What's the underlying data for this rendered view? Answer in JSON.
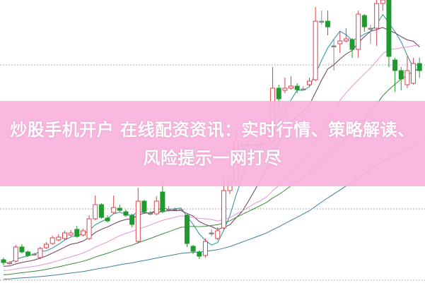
{
  "banner": {
    "title": "炒股手机开户 在线配资资讯：实时行情、策略解读、风险提示一网打尽"
  },
  "colors": {
    "up": "#d9434e",
    "down": "#1f9a2e",
    "flat": "#888888",
    "grid": "#999999",
    "banner": "#f9b2dc",
    "ma": [
      "#2a8f9e",
      "#6b3a5e",
      "#e591d9",
      "#3d8a3a",
      "#3f7f9c"
    ]
  },
  "chart_data": {
    "type": "candlestick",
    "title": "",
    "xlabel": "",
    "ylabel": "",
    "grid": true,
    "legend": "none",
    "moving_averages": 5,
    "ohlc_order": [
      "open",
      "close",
      "high",
      "low"
    ],
    "candles": [
      [
        32,
        28,
        35,
        24
      ],
      [
        27,
        28,
        30,
        25
      ],
      [
        30,
        50,
        53,
        28
      ],
      [
        50,
        43,
        54,
        41
      ],
      [
        43,
        38,
        45,
        36
      ],
      [
        40,
        40,
        42,
        38
      ],
      [
        35,
        48,
        50,
        33
      ],
      [
        49,
        54,
        57,
        47
      ],
      [
        55,
        63,
        66,
        53
      ],
      [
        60,
        64,
        68,
        58
      ],
      [
        62,
        70,
        73,
        60
      ],
      [
        67,
        70,
        74,
        65
      ],
      [
        75,
        65,
        80,
        63
      ],
      [
        67,
        73,
        76,
        65
      ],
      [
        62,
        90,
        95,
        60
      ],
      [
        90,
        110,
        123,
        88
      ],
      [
        110,
        92,
        112,
        90
      ],
      [
        91,
        87,
        95,
        85
      ],
      [
        99,
        106,
        123,
        97
      ],
      [
        105,
        102,
        110,
        100
      ],
      [
        100,
        95,
        103,
        93
      ],
      [
        95,
        82,
        97,
        78
      ],
      [
        58,
        115,
        134,
        55
      ],
      [
        115,
        100,
        117,
        98
      ],
      [
        98,
        98,
        101,
        95
      ],
      [
        97,
        115,
        122,
        95
      ],
      [
        128,
        100,
        142,
        98
      ],
      [
        104,
        104,
        108,
        100
      ],
      [
        104,
        104,
        106,
        102
      ],
      [
        103,
        103,
        106,
        101
      ],
      [
        95,
        55,
        97,
        50
      ],
      [
        51,
        44,
        53,
        40
      ],
      [
        43,
        37,
        45,
        33
      ],
      [
        38,
        58,
        62,
        35
      ],
      [
        70,
        70,
        75,
        65
      ],
      [
        62,
        73,
        78,
        60
      ],
      [
        77,
        130,
        152,
        75
      ],
      [
        130,
        142,
        148,
        125
      ],
      [
        142,
        200,
        215,
        140
      ],
      [
        195,
        195,
        200,
        190
      ],
      [
        195,
        195,
        197,
        193
      ],
      [
        195,
        195,
        197,
        193
      ],
      [
        195,
        195,
        200,
        190
      ],
      [
        195,
        205,
        212,
        193
      ],
      [
        200,
        275,
        305,
        195
      ],
      [
        275,
        260,
        280,
        245
      ],
      [
        272,
        275,
        290,
        268
      ],
      [
        275,
        278,
        292,
        273
      ],
      [
        278,
        273,
        282,
        268
      ],
      [
        274,
        274,
        278,
        272
      ],
      [
        280,
        285,
        290,
        278
      ],
      [
        287,
        370,
        390,
        285
      ],
      [
        370,
        370,
        385,
        365
      ],
      [
        370,
        362,
        385,
        350
      ],
      [
        335,
        335,
        345,
        300
      ],
      [
        338,
        342,
        355,
        325
      ],
      [
        342,
        345,
        360,
        340
      ],
      [
        344,
        330,
        346,
        318
      ],
      [
        330,
        380,
        385,
        318
      ],
      [
        378,
        362,
        380,
        355
      ],
      [
        360,
        360,
        365,
        338
      ],
      [
        360,
        395,
        400,
        335
      ],
      [
        395,
        400,
        401,
        385
      ],
      [
        400,
        320,
        401,
        305
      ],
      [
        315,
        300,
        318,
        270
      ],
      [
        300,
        288,
        305,
        272
      ],
      [
        280,
        300,
        320,
        275
      ],
      [
        282,
        310,
        318,
        280
      ],
      [
        310,
        300,
        318,
        290
      ]
    ]
  }
}
